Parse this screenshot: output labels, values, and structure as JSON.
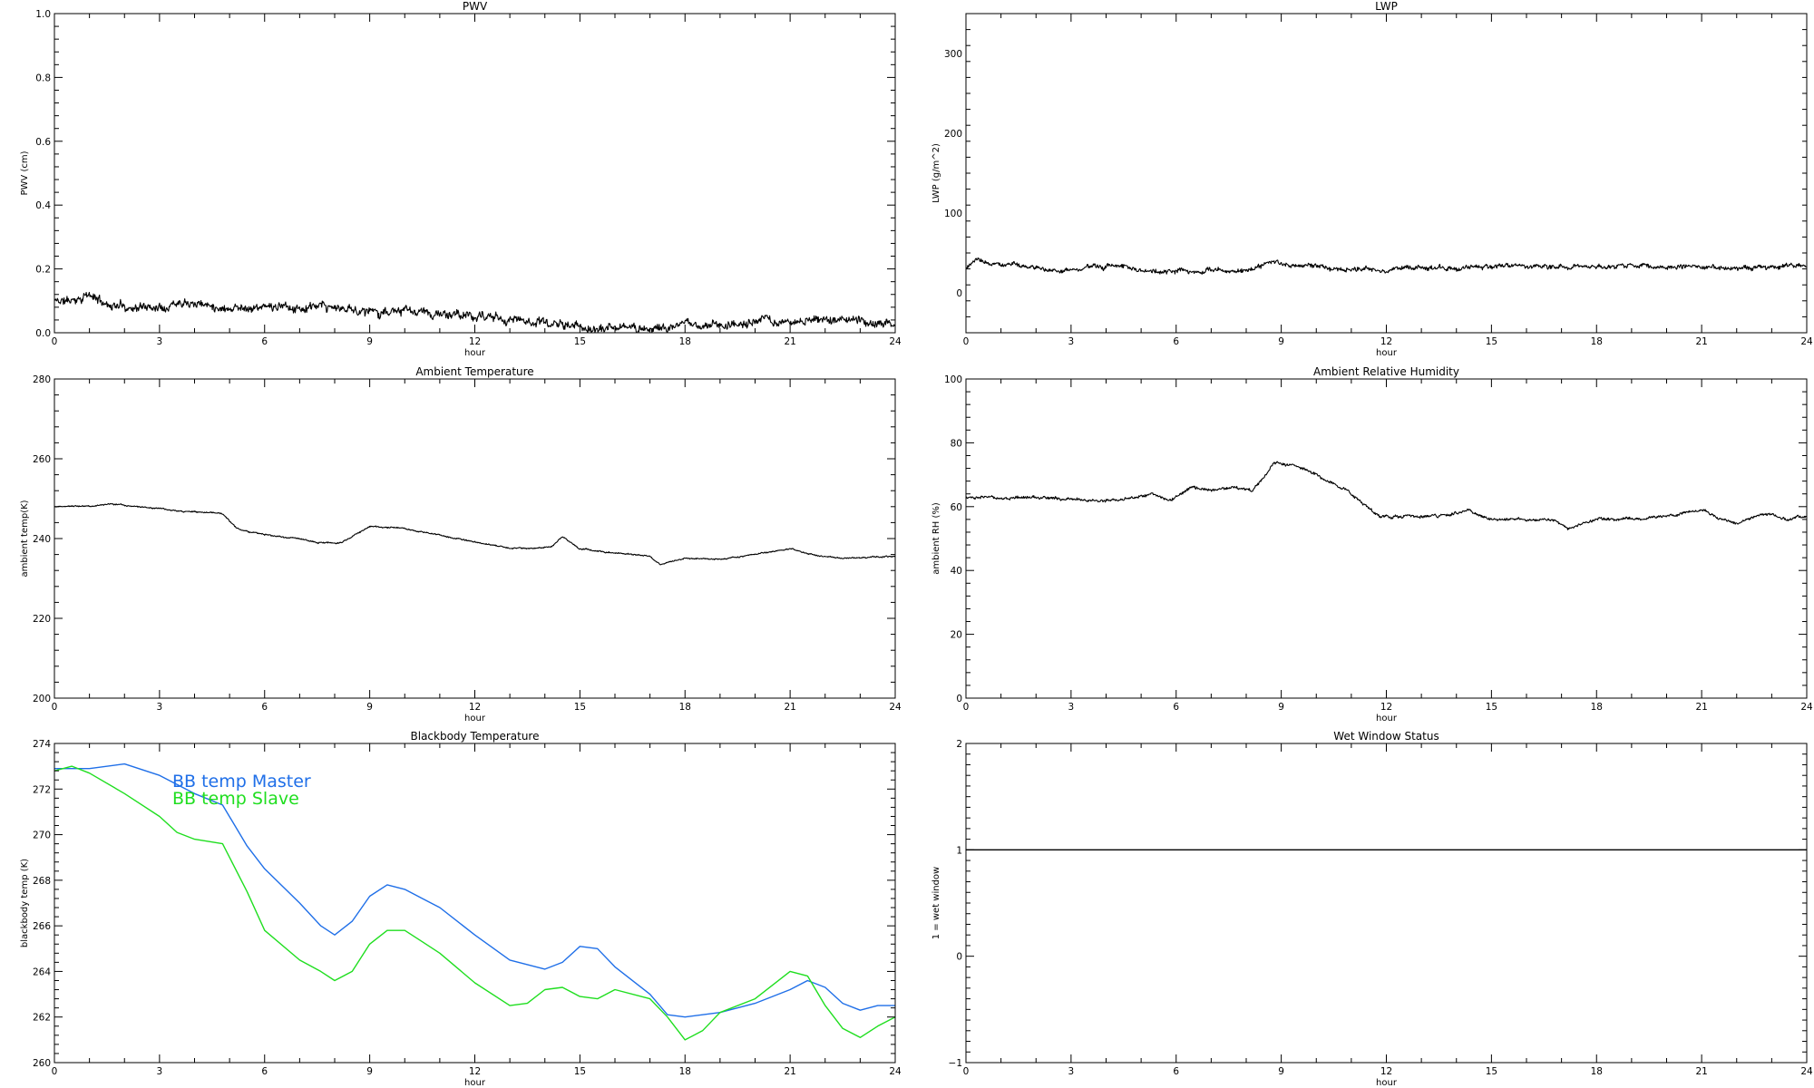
{
  "figure": {
    "x_axis": {
      "label": "hour",
      "ticks": [
        "0",
        "3",
        "6",
        "9",
        "12",
        "15",
        "18",
        "21",
        "24"
      ]
    }
  },
  "chart_data": [
    {
      "id": "pwv",
      "type": "line",
      "title": "PWV",
      "xlabel": "hour",
      "ylabel": "PWV (cm)",
      "xlim": [
        0,
        24
      ],
      "ylim": [
        0,
        1
      ],
      "yticks": [
        "0.0",
        "0.2",
        "0.4",
        "0.6",
        "0.8",
        "1.0"
      ],
      "series": [
        {
          "color": "#000000",
          "noise": 0.012,
          "seed": 11,
          "x": [
            0,
            0.5,
            0.9,
            1.5,
            2.5,
            3.2,
            3.8,
            4.5,
            6,
            7.5,
            9,
            10.5,
            12,
            13.5,
            14.5,
            15.5,
            16.5,
            18,
            19.5,
            21,
            22.5,
            23.5,
            24
          ],
          "y": [
            0.1,
            0.1,
            0.12,
            0.09,
            0.08,
            0.09,
            0.11,
            0.085,
            0.08,
            0.075,
            0.07,
            0.06,
            0.05,
            0.04,
            0.025,
            0.01,
            0.015,
            0.02,
            0.03,
            0.035,
            0.04,
            0.03,
            0.035
          ]
        }
      ]
    },
    {
      "id": "lwp",
      "type": "line",
      "title": "LWP",
      "xlabel": "hour",
      "ylabel": "LWP (g/m^2)",
      "xlim": [
        0,
        24
      ],
      "ylim": [
        -50,
        350
      ],
      "yticks": [
        "0",
        "100",
        "200",
        "300"
      ],
      "series": [
        {
          "color": "#000000",
          "noise": 2.5,
          "seed": 23,
          "x": [
            0,
            0.3,
            0.8,
            1.2,
            2,
            3,
            3.8,
            4.5,
            5,
            6,
            7,
            8,
            8.8,
            9.5,
            10.5,
            12,
            13,
            15,
            16,
            18,
            19.5,
            21,
            22.5,
            24
          ],
          "y": [
            32,
            40,
            35,
            38,
            30,
            29,
            32,
            35,
            28,
            27,
            27,
            29,
            37,
            35,
            31,
            30,
            31,
            34,
            34,
            33,
            34,
            32,
            32,
            33
          ]
        }
      ]
    },
    {
      "id": "ambient-temperature",
      "type": "line",
      "title": "Ambient Temperature",
      "xlabel": "hour",
      "ylabel": "ambient temp(K)",
      "xlim": [
        0,
        24
      ],
      "ylim": [
        200,
        280
      ],
      "yticks": [
        "200",
        "220",
        "240",
        "260",
        "280"
      ],
      "series": [
        {
          "color": "#000000",
          "noise": 0.15,
          "seed": 37,
          "x": [
            0,
            1,
            1.6,
            2.5,
            3.5,
            4.8,
            5.2,
            6,
            7,
            7.5,
            8.2,
            9,
            10,
            11.5,
            13,
            14.2,
            14.5,
            15,
            16,
            17,
            17.3,
            18,
            19,
            20,
            21,
            21.5,
            22.5,
            23.5,
            24
          ],
          "y": [
            248,
            248.3,
            248.6,
            248,
            246.8,
            246.3,
            242.5,
            241,
            240,
            239,
            239,
            243,
            242.5,
            240,
            237.5,
            238,
            240.5,
            237.5,
            236.5,
            235.5,
            233.5,
            235,
            235,
            236,
            237.5,
            236,
            235,
            235.5,
            235.5
          ]
        }
      ]
    },
    {
      "id": "ambient-relative-humidity",
      "type": "line",
      "title": "Ambient Relative Humidity",
      "xlabel": "hour",
      "ylabel": "ambient RH (%)",
      "xlim": [
        0,
        24
      ],
      "ylim": [
        0,
        100
      ],
      "yticks": [
        "0",
        "20",
        "40",
        "60",
        "80",
        "100"
      ],
      "series": [
        {
          "color": "#000000",
          "noise": 0.4,
          "seed": 53,
          "x": [
            0,
            1,
            2,
            3,
            4.5,
            5.3,
            5.8,
            6.4,
            7,
            7.6,
            8.2,
            8.8,
            9.3,
            10,
            11,
            11.8,
            12.5,
            13.5,
            14.3,
            15,
            16,
            16.8,
            17.2,
            18,
            19,
            20,
            21,
            21.5,
            22,
            22.8,
            23.5,
            24
          ],
          "y": [
            63,
            63,
            63,
            62,
            62,
            64,
            62,
            66,
            65,
            66,
            65,
            74,
            73,
            70,
            64,
            57,
            57,
            57,
            59,
            56,
            56,
            56,
            53,
            56,
            56,
            57,
            59,
            56,
            55,
            58,
            56,
            57
          ]
        }
      ]
    },
    {
      "id": "blackbody-temperature",
      "type": "line",
      "title": "Blackbody Temperature",
      "xlabel": "hour",
      "ylabel": "blackbody temp (K)",
      "xlim": [
        0,
        24
      ],
      "ylim": [
        260,
        274
      ],
      "yticks": [
        "260",
        "262",
        "264",
        "266",
        "268",
        "270",
        "272",
        "274"
      ],
      "legend": {
        "position": "upper-left"
      },
      "series": [
        {
          "name": "BB temp Master",
          "color": "#1f6fe8",
          "noise": 0,
          "seed": 0,
          "x": [
            0,
            1,
            2,
            3,
            4,
            4.8,
            5.5,
            6,
            7,
            7.6,
            8,
            8.5,
            9,
            9.5,
            10,
            10.5,
            11,
            12,
            13,
            14,
            14.5,
            15,
            15.5,
            16,
            17,
            17.5,
            18,
            19,
            20,
            21,
            21.5,
            22,
            22.5,
            23,
            23.5,
            24
          ],
          "y": [
            272.9,
            272.9,
            273.1,
            272.6,
            271.8,
            271.3,
            269.5,
            268.5,
            267,
            266,
            265.6,
            266.2,
            267.3,
            267.8,
            267.6,
            267.2,
            266.8,
            265.6,
            264.5,
            264.1,
            264.4,
            265.1,
            265,
            264.2,
            263,
            262.1,
            262,
            262.2,
            262.6,
            263.2,
            263.6,
            263.3,
            262.6,
            262.3,
            262.5,
            262.5
          ]
        },
        {
          "name": "BB temp Slave",
          "color": "#1fde1f",
          "noise": 0,
          "seed": 0,
          "x": [
            0,
            0.5,
            1,
            2,
            3,
            3.5,
            4,
            4.8,
            5.5,
            6,
            7,
            7.6,
            8,
            8.5,
            9,
            9.5,
            10,
            10.5,
            11,
            12,
            13,
            13.5,
            14,
            14.5,
            15,
            15.5,
            16,
            17,
            17.5,
            18,
            18.5,
            19,
            20,
            21,
            21.5,
            22,
            22.5,
            23,
            23.5,
            24
          ],
          "y": [
            272.8,
            273,
            272.7,
            271.8,
            270.8,
            270.1,
            269.8,
            269.6,
            267.5,
            265.8,
            264.5,
            264,
            263.6,
            264,
            265.2,
            265.8,
            265.8,
            265.3,
            264.8,
            263.5,
            262.5,
            262.6,
            263.2,
            263.3,
            262.9,
            262.8,
            263.2,
            262.8,
            262,
            261,
            261.4,
            262.2,
            262.8,
            264,
            263.8,
            262.5,
            261.5,
            261.1,
            261.6,
            262
          ]
        }
      ]
    },
    {
      "id": "wet-window-status",
      "type": "line",
      "title": "Wet Window Status",
      "xlabel": "hour",
      "ylabel": "1 = wet window",
      "xlim": [
        0,
        24
      ],
      "ylim": [
        -1,
        2
      ],
      "yticks": [
        "−1",
        "0",
        "1",
        "2"
      ],
      "series": [
        {
          "color": "#000000",
          "noise": 0,
          "seed": 0,
          "x": [
            0,
            24
          ],
          "y": [
            1,
            1
          ]
        }
      ]
    }
  ]
}
